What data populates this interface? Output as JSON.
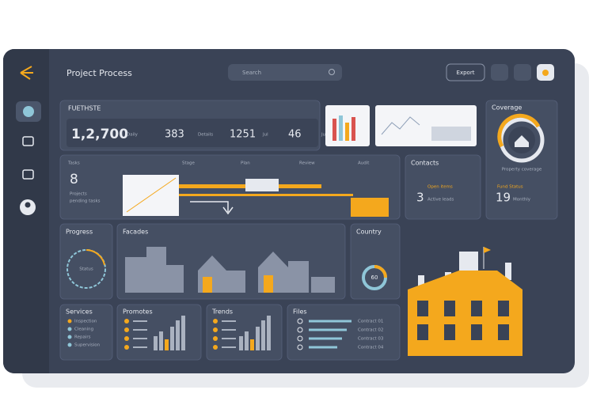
{
  "header": {
    "title": "Project Process",
    "search": "Search",
    "button": "Export"
  },
  "stats": {
    "title": "FUETHSTE",
    "items": [
      {
        "value": "1,2,700",
        "label": "Daily"
      },
      {
        "value": "383",
        "label": "Details"
      },
      {
        "value": "1251",
        "label": "Jul"
      },
      {
        "value": "46",
        "label": "Jun"
      }
    ]
  },
  "coverage": {
    "title": "Coverage",
    "caption": "Property coverage",
    "label": "Fund Status",
    "value": "19",
    "sub": "Monthly"
  },
  "timeline": {
    "columns": [
      "Tasks",
      "Stage",
      "Plan",
      "Review",
      "Audit"
    ],
    "value": "8",
    "label": "Projects",
    "sub": "pending tasks"
  },
  "contacts": {
    "title": "Contacts",
    "label": "Open items",
    "value": "3",
    "sub": "Active leads"
  },
  "progress": {
    "title": "Progress",
    "label": "Status"
  },
  "facades": {
    "title": "Facades"
  },
  "country": {
    "title": "Country",
    "value": "60"
  },
  "services": {
    "title": "Services",
    "items": [
      "Inspection",
      "Cleaning",
      "Repairs",
      "Supervision"
    ]
  },
  "promotes": {
    "title": "Promotes"
  },
  "trends": {
    "title": "Trends"
  },
  "files": {
    "title": "Files",
    "rows": [
      "Contract 01",
      "Contract 02",
      "Contract 03",
      "Contract 04"
    ]
  }
}
